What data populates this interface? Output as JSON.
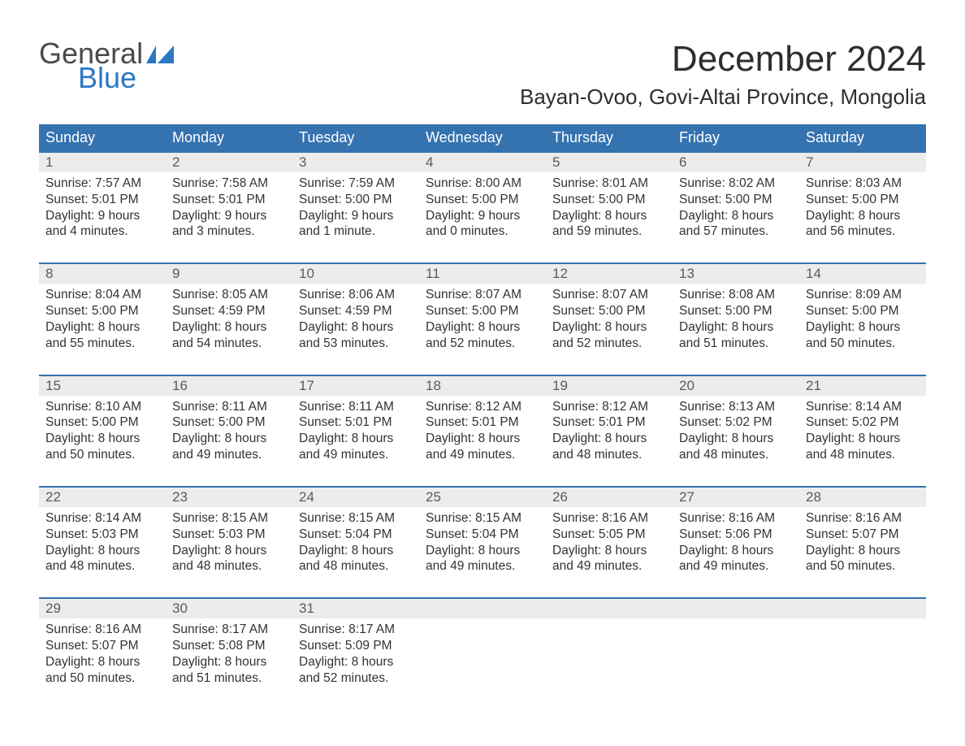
{
  "logo": {
    "general": "General",
    "blue": "Blue",
    "flag_color": "#2b78c5"
  },
  "title": "December 2024",
  "location": "Bayan-Ovoo, Govi-Altai Province, Mongolia",
  "colors": {
    "header_bg": "#3572b0",
    "header_text": "#ffffff",
    "num_row_bg": "#ececec",
    "rule": "#3572b0",
    "body_text": "#333333",
    "logo_blue": "#2b78c5",
    "logo_gray": "#4a4a4a"
  },
  "day_names": [
    "Sunday",
    "Monday",
    "Tuesday",
    "Wednesday",
    "Thursday",
    "Friday",
    "Saturday"
  ],
  "weeks": [
    [
      {
        "n": "1",
        "sr": "Sunrise: 7:57 AM",
        "ss": "Sunset: 5:01 PM",
        "d1": "Daylight: 9 hours",
        "d2": "and 4 minutes."
      },
      {
        "n": "2",
        "sr": "Sunrise: 7:58 AM",
        "ss": "Sunset: 5:01 PM",
        "d1": "Daylight: 9 hours",
        "d2": "and 3 minutes."
      },
      {
        "n": "3",
        "sr": "Sunrise: 7:59 AM",
        "ss": "Sunset: 5:00 PM",
        "d1": "Daylight: 9 hours",
        "d2": "and 1 minute."
      },
      {
        "n": "4",
        "sr": "Sunrise: 8:00 AM",
        "ss": "Sunset: 5:00 PM",
        "d1": "Daylight: 9 hours",
        "d2": "and 0 minutes."
      },
      {
        "n": "5",
        "sr": "Sunrise: 8:01 AM",
        "ss": "Sunset: 5:00 PM",
        "d1": "Daylight: 8 hours",
        "d2": "and 59 minutes."
      },
      {
        "n": "6",
        "sr": "Sunrise: 8:02 AM",
        "ss": "Sunset: 5:00 PM",
        "d1": "Daylight: 8 hours",
        "d2": "and 57 minutes."
      },
      {
        "n": "7",
        "sr": "Sunrise: 8:03 AM",
        "ss": "Sunset: 5:00 PM",
        "d1": "Daylight: 8 hours",
        "d2": "and 56 minutes."
      }
    ],
    [
      {
        "n": "8",
        "sr": "Sunrise: 8:04 AM",
        "ss": "Sunset: 5:00 PM",
        "d1": "Daylight: 8 hours",
        "d2": "and 55 minutes."
      },
      {
        "n": "9",
        "sr": "Sunrise: 8:05 AM",
        "ss": "Sunset: 4:59 PM",
        "d1": "Daylight: 8 hours",
        "d2": "and 54 minutes."
      },
      {
        "n": "10",
        "sr": "Sunrise: 8:06 AM",
        "ss": "Sunset: 4:59 PM",
        "d1": "Daylight: 8 hours",
        "d2": "and 53 minutes."
      },
      {
        "n": "11",
        "sr": "Sunrise: 8:07 AM",
        "ss": "Sunset: 5:00 PM",
        "d1": "Daylight: 8 hours",
        "d2": "and 52 minutes."
      },
      {
        "n": "12",
        "sr": "Sunrise: 8:07 AM",
        "ss": "Sunset: 5:00 PM",
        "d1": "Daylight: 8 hours",
        "d2": "and 52 minutes."
      },
      {
        "n": "13",
        "sr": "Sunrise: 8:08 AM",
        "ss": "Sunset: 5:00 PM",
        "d1": "Daylight: 8 hours",
        "d2": "and 51 minutes."
      },
      {
        "n": "14",
        "sr": "Sunrise: 8:09 AM",
        "ss": "Sunset: 5:00 PM",
        "d1": "Daylight: 8 hours",
        "d2": "and 50 minutes."
      }
    ],
    [
      {
        "n": "15",
        "sr": "Sunrise: 8:10 AM",
        "ss": "Sunset: 5:00 PM",
        "d1": "Daylight: 8 hours",
        "d2": "and 50 minutes."
      },
      {
        "n": "16",
        "sr": "Sunrise: 8:11 AM",
        "ss": "Sunset: 5:00 PM",
        "d1": "Daylight: 8 hours",
        "d2": "and 49 minutes."
      },
      {
        "n": "17",
        "sr": "Sunrise: 8:11 AM",
        "ss": "Sunset: 5:01 PM",
        "d1": "Daylight: 8 hours",
        "d2": "and 49 minutes."
      },
      {
        "n": "18",
        "sr": "Sunrise: 8:12 AM",
        "ss": "Sunset: 5:01 PM",
        "d1": "Daylight: 8 hours",
        "d2": "and 49 minutes."
      },
      {
        "n": "19",
        "sr": "Sunrise: 8:12 AM",
        "ss": "Sunset: 5:01 PM",
        "d1": "Daylight: 8 hours",
        "d2": "and 48 minutes."
      },
      {
        "n": "20",
        "sr": "Sunrise: 8:13 AM",
        "ss": "Sunset: 5:02 PM",
        "d1": "Daylight: 8 hours",
        "d2": "and 48 minutes."
      },
      {
        "n": "21",
        "sr": "Sunrise: 8:14 AM",
        "ss": "Sunset: 5:02 PM",
        "d1": "Daylight: 8 hours",
        "d2": "and 48 minutes."
      }
    ],
    [
      {
        "n": "22",
        "sr": "Sunrise: 8:14 AM",
        "ss": "Sunset: 5:03 PM",
        "d1": "Daylight: 8 hours",
        "d2": "and 48 minutes."
      },
      {
        "n": "23",
        "sr": "Sunrise: 8:15 AM",
        "ss": "Sunset: 5:03 PM",
        "d1": "Daylight: 8 hours",
        "d2": "and 48 minutes."
      },
      {
        "n": "24",
        "sr": "Sunrise: 8:15 AM",
        "ss": "Sunset: 5:04 PM",
        "d1": "Daylight: 8 hours",
        "d2": "and 48 minutes."
      },
      {
        "n": "25",
        "sr": "Sunrise: 8:15 AM",
        "ss": "Sunset: 5:04 PM",
        "d1": "Daylight: 8 hours",
        "d2": "and 49 minutes."
      },
      {
        "n": "26",
        "sr": "Sunrise: 8:16 AM",
        "ss": "Sunset: 5:05 PM",
        "d1": "Daylight: 8 hours",
        "d2": "and 49 minutes."
      },
      {
        "n": "27",
        "sr": "Sunrise: 8:16 AM",
        "ss": "Sunset: 5:06 PM",
        "d1": "Daylight: 8 hours",
        "d2": "and 49 minutes."
      },
      {
        "n": "28",
        "sr": "Sunrise: 8:16 AM",
        "ss": "Sunset: 5:07 PM",
        "d1": "Daylight: 8 hours",
        "d2": "and 50 minutes."
      }
    ],
    [
      {
        "n": "29",
        "sr": "Sunrise: 8:16 AM",
        "ss": "Sunset: 5:07 PM",
        "d1": "Daylight: 8 hours",
        "d2": "and 50 minutes."
      },
      {
        "n": "30",
        "sr": "Sunrise: 8:17 AM",
        "ss": "Sunset: 5:08 PM",
        "d1": "Daylight: 8 hours",
        "d2": "and 51 minutes."
      },
      {
        "n": "31",
        "sr": "Sunrise: 8:17 AM",
        "ss": "Sunset: 5:09 PM",
        "d1": "Daylight: 8 hours",
        "d2": "and 52 minutes."
      },
      {
        "n": "",
        "sr": "",
        "ss": "",
        "d1": "",
        "d2": ""
      },
      {
        "n": "",
        "sr": "",
        "ss": "",
        "d1": "",
        "d2": ""
      },
      {
        "n": "",
        "sr": "",
        "ss": "",
        "d1": "",
        "d2": ""
      },
      {
        "n": "",
        "sr": "",
        "ss": "",
        "d1": "",
        "d2": ""
      }
    ]
  ]
}
